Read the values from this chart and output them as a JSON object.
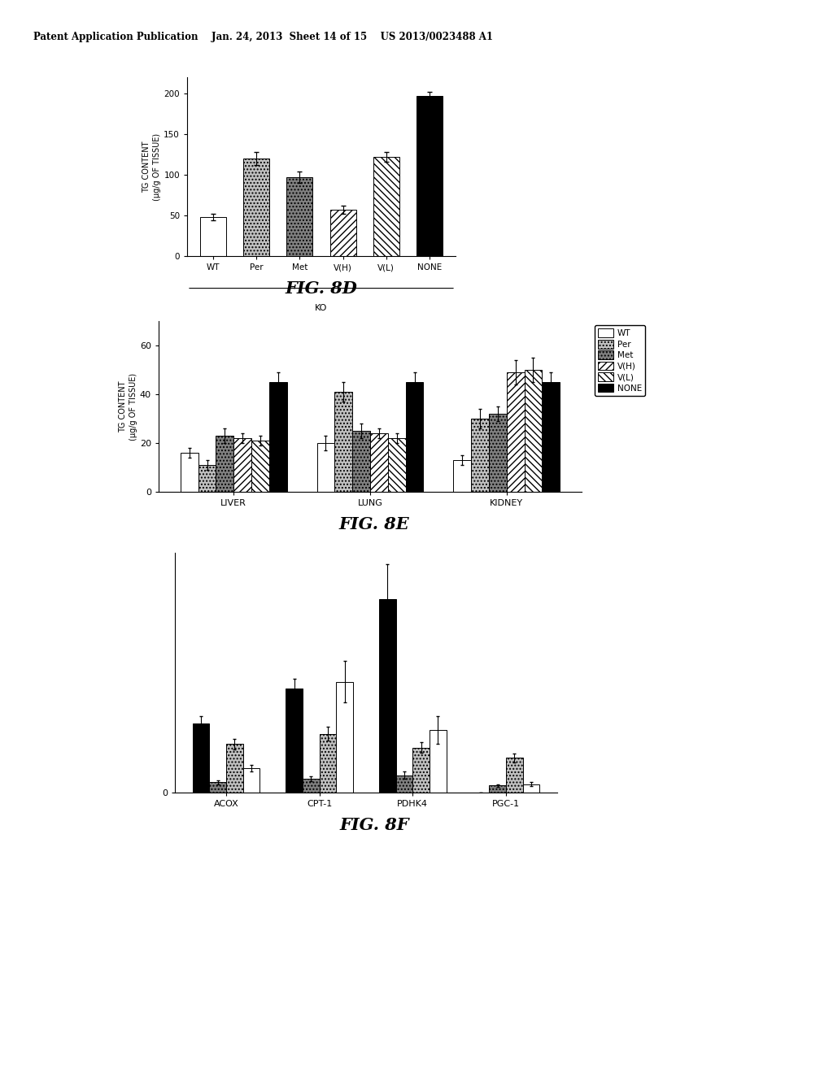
{
  "header_text": "Patent Application Publication    Jan. 24, 2013  Sheet 14 of 15    US 2013/0023488 A1",
  "fig8d": {
    "title": "FIG. 8D",
    "xlabel": "KO",
    "ylabel": "TG CONTENT\n(μg/g OF TISSUE)",
    "categories": [
      "WT",
      "Per",
      "Met",
      "V(H)",
      "V(L)",
      "NONE"
    ],
    "values": [
      48,
      120,
      97,
      57,
      122,
      197
    ],
    "errors": [
      4,
      8,
      7,
      5,
      6,
      5
    ],
    "ylim": [
      0,
      220
    ],
    "yticks": [
      0,
      50,
      100,
      150,
      200
    ]
  },
  "fig8e": {
    "title": "FIG. 8E",
    "ylabel": "TG CONTENT\n(μg/g OF TISSUE)",
    "groups": [
      "LIVER",
      "LUNG",
      "KIDNEY"
    ],
    "series": [
      "WT",
      "Per",
      "Met",
      "V(H)",
      "V(L)",
      "NONE"
    ],
    "values_clean": [
      [
        16,
        11,
        23,
        22,
        21,
        45
      ],
      [
        20,
        41,
        25,
        24,
        22,
        45
      ],
      [
        13,
        30,
        32,
        49,
        50,
        45
      ]
    ],
    "errors_clean": [
      [
        2,
        2,
        3,
        2,
        2,
        4
      ],
      [
        3,
        4,
        3,
        2,
        2,
        4
      ],
      [
        2,
        4,
        3,
        5,
        5,
        4
      ]
    ],
    "ylim": [
      0,
      70
    ],
    "yticks": [
      0,
      20,
      40,
      60
    ],
    "legend_labels": [
      "WT",
      "Per",
      "Met",
      "V(H)",
      "V(L)",
      "NONE"
    ]
  },
  "fig8f": {
    "title": "FIG. 8F",
    "groups": [
      "ACOX",
      "CPT-1",
      "PDHK4",
      "PGC-1"
    ],
    "series": [
      "NONE",
      "Met",
      "Per",
      "WT"
    ],
    "values": [
      [
        1.0,
        0.15,
        0.7,
        0.35
      ],
      [
        1.5,
        0.2,
        0.85,
        1.6
      ],
      [
        2.8,
        0.25,
        0.65,
        0.9
      ],
      [
        0.0,
        0.1,
        0.5,
        0.12
      ]
    ],
    "errors": [
      [
        0.1,
        0.03,
        0.08,
        0.05
      ],
      [
        0.15,
        0.04,
        0.1,
        0.3
      ],
      [
        0.5,
        0.05,
        0.08,
        0.2
      ],
      [
        0.0,
        0.02,
        0.06,
        0.03
      ]
    ]
  }
}
